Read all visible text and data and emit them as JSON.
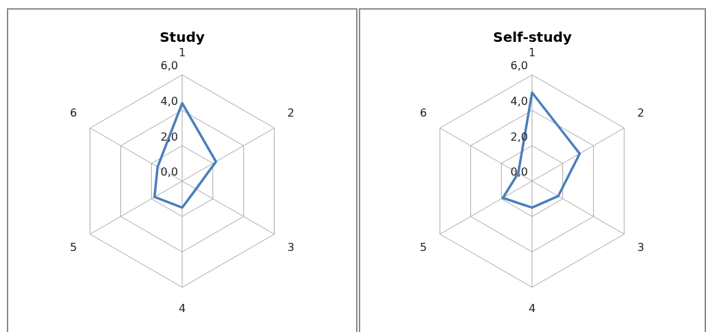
{
  "chart_data": [
    {
      "type": "radar",
      "title": "Study",
      "categories": [
        "1",
        "2",
        "3",
        "4",
        "5",
        "6"
      ],
      "series": [
        {
          "color": "#4a7ebb",
          "values": [
            4.4,
            2.2,
            0.9,
            1.5,
            1.8,
            1.6
          ]
        }
      ],
      "ylim": [
        0,
        6
      ],
      "yticks": [
        {
          "value": 0,
          "label": "0,0"
        },
        {
          "value": 2,
          "label": "2,0"
        },
        {
          "value": 4,
          "label": "4,0"
        },
        {
          "value": 6,
          "label": "6,0"
        }
      ],
      "grid": true,
      "marker": "none"
    },
    {
      "type": "radar",
      "title": "Self-study",
      "categories": [
        "1",
        "2",
        "3",
        "4",
        "5",
        "6"
      ],
      "series": [
        {
          "color": "#4a7ebb",
          "values": [
            5.0,
            3.1,
            1.7,
            1.5,
            1.9,
            0.9
          ]
        }
      ],
      "ylim": [
        0,
        6
      ],
      "yticks": [
        {
          "value": 0,
          "label": "0,0"
        },
        {
          "value": 2,
          "label": "2,0"
        },
        {
          "value": 4,
          "label": "4,0"
        },
        {
          "value": 6,
          "label": "6,0"
        }
      ],
      "grid": true,
      "marker": "none"
    }
  ]
}
